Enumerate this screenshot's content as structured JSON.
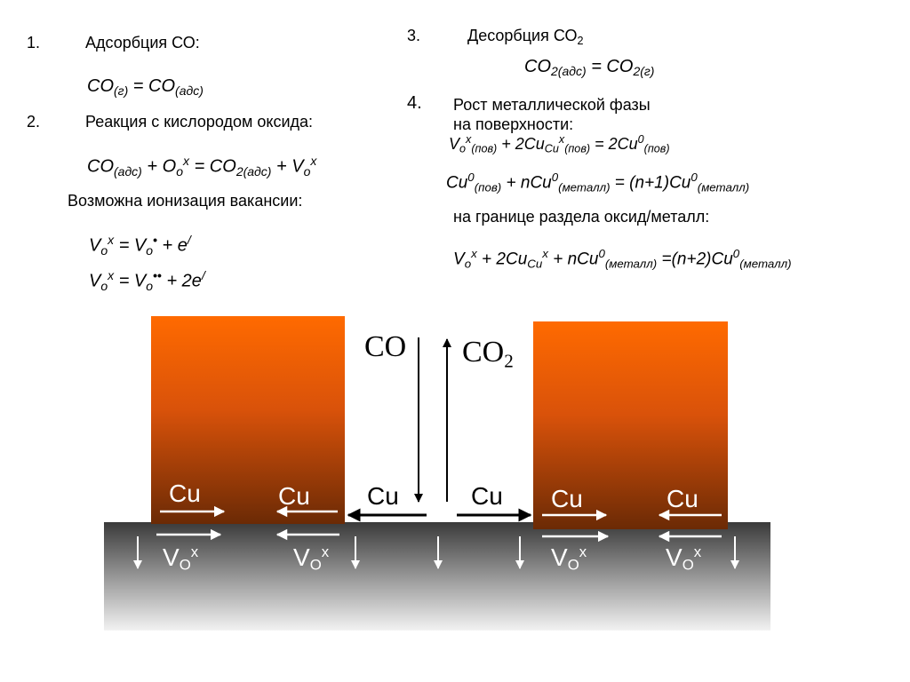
{
  "items": {
    "n1": "1.",
    "title1": "Адсорбция СО:",
    "n2": "2.",
    "title2": "Реакция с кислородом оксида:",
    "note_ionization": "Возможна ионизация вакансии:",
    "n3": "3.",
    "title3": "Десорбция СО",
    "title3_sub": "2",
    "n4": "4.",
    "title4_line1": "Рост металлической фазы",
    "title4_line2": "на поверхности:",
    "interface_note": "на границе раздела оксид/металл:"
  },
  "diagram": {
    "gas_in": "CO",
    "gas_out": "CO",
    "gas_out_sub": "2",
    "cu_labels": [
      "Cu",
      "Cu",
      "Cu",
      "Cu",
      "Cu",
      "Cu"
    ],
    "vacancy_base": "V",
    "vacancy_sub": "O",
    "vacancy_sup": "x",
    "colors": {
      "copper_top": "#ff6a00",
      "copper_bottom": "#6b2a05",
      "oxide_top": "#3a3a3a",
      "oxide_bottom": "#f2f2f2"
    }
  }
}
